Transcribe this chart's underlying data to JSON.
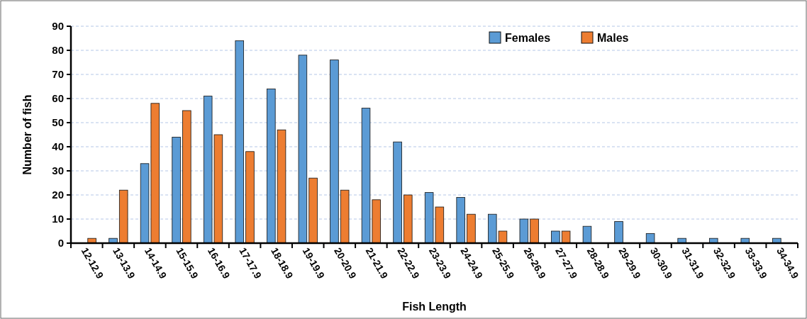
{
  "chart_data": {
    "type": "bar",
    "xlabel": "Fish Length",
    "ylabel": "Number of fish",
    "categories": [
      "12-12.9",
      "13-13.9",
      "14-14.9",
      "15-15.9",
      "16-16.9",
      "17-17.9",
      "18-18.9",
      "19-19.9",
      "20-20.9",
      "21-21.9",
      "22-22.9",
      "23-23.9",
      "24-24.9",
      "25-25.9",
      "26-26.9",
      "27-27.9",
      "28-28.9",
      "29-29.9",
      "30-30.9",
      "31-31.9",
      "32-32.9",
      "33-33.9",
      "34-34.9"
    ],
    "series": [
      {
        "name": "Females",
        "color": "#5b9bd5",
        "values": [
          0,
          2,
          33,
          44,
          61,
          84,
          64,
          78,
          76,
          56,
          42,
          21,
          19,
          12,
          10,
          5,
          7,
          9,
          4,
          2,
          2,
          2,
          2
        ]
      },
      {
        "name": "Males",
        "color": "#ed7d31",
        "values": [
          2,
          22,
          58,
          55,
          45,
          38,
          47,
          27,
          22,
          18,
          20,
          15,
          12,
          5,
          10,
          5,
          0,
          0,
          0,
          0,
          0,
          0,
          0
        ]
      }
    ],
    "ylim": [
      0,
      90
    ],
    "yticks": [
      0,
      10,
      20,
      30,
      40,
      50,
      60,
      70,
      80,
      90
    ],
    "grid": "y",
    "legend": "top right"
  }
}
